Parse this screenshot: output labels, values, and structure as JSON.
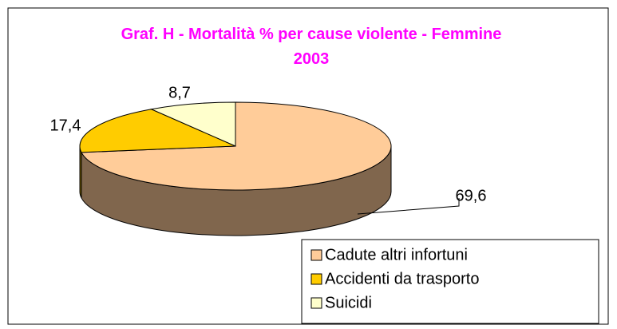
{
  "chart_data": {
    "type": "pie",
    "title": "Graf. H - Mortalità % per cause violente - Femmine 2003",
    "categories": [
      "Cadute altri infortuni",
      "Accidenti da trasporto",
      "Suicidi"
    ],
    "values": [
      69.6,
      17.4,
      8.7
    ],
    "value_labels": [
      "69,6",
      "17,4",
      "8,7"
    ],
    "colors": [
      "#ffcc99",
      "#ffcc00",
      "#ffffcc"
    ],
    "legend": "bottom-right"
  }
}
